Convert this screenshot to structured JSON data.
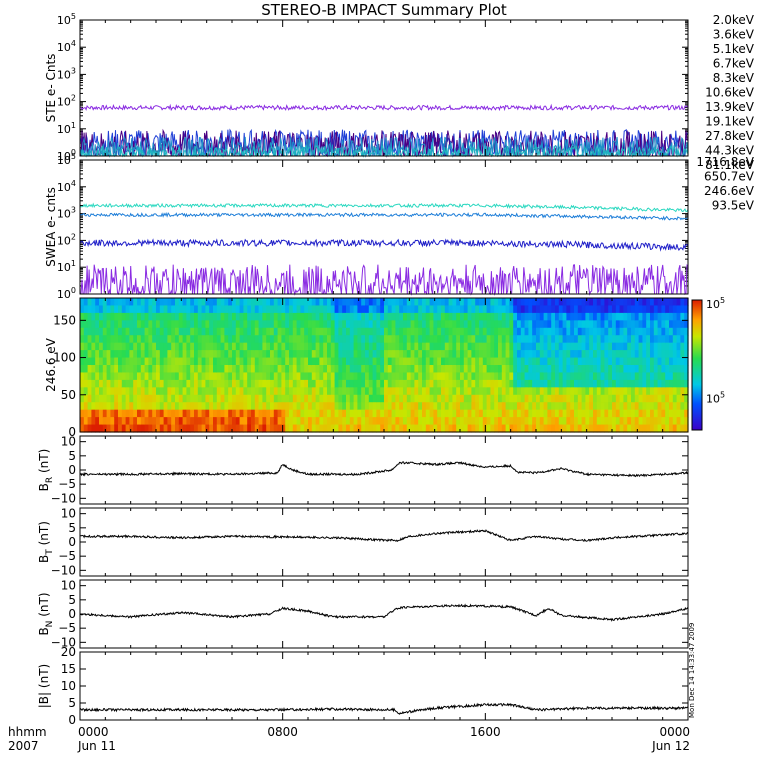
{
  "title": "STEREO-B IMPACT Summary Plot",
  "stamp": "Mon Dec 14 14:33:47 2009",
  "chart_data": [
    {
      "type": "line",
      "id": "ste",
      "ylabel": "STE e- Cnts",
      "yscale": "log",
      "ylim": [
        1,
        100000
      ],
      "ytick_labels": [
        {
          "base": "10",
          "exp": "0"
        },
        {
          "base": "10",
          "exp": "1"
        },
        {
          "base": "10",
          "exp": "2"
        },
        {
          "base": "10",
          "exp": "3"
        },
        {
          "base": "10",
          "exp": "4"
        },
        {
          "base": "10",
          "exp": "5"
        }
      ],
      "legend": [
        {
          "label": "2.0keV",
          "color": "#8a2be2"
        },
        {
          "label": "3.6keV",
          "color": "#4b0082"
        },
        {
          "label": "5.1keV",
          "color": "#1f3fd6"
        },
        {
          "label": "6.7keV",
          "color": "#1e90c8"
        },
        {
          "label": "8.3keV",
          "color": "#1fb5c0"
        },
        {
          "label": "10.6keV",
          "color": "#18c890"
        },
        {
          "label": "13.9keV",
          "color": "#10b030"
        },
        {
          "label": "19.1keV",
          "color": "#a8c010"
        },
        {
          "label": "27.8keV",
          "color": "#e0b000"
        },
        {
          "label": "44.3keV",
          "color": "#e07000"
        },
        {
          "label": "81.1keV",
          "color": "#d02000"
        }
      ],
      "series": [
        {
          "color": "#8a2be2",
          "level": 60,
          "noise": 0.04
        },
        {
          "color": "#1f3fd6",
          "level": 3,
          "noise": 0.25
        },
        {
          "color": "#4b0082",
          "level": 2.2,
          "noise": 0.3
        },
        {
          "color": "#1e90c8",
          "level": 1.6,
          "noise": 0.25
        },
        {
          "color": "#1fb5c0",
          "level": 1.2,
          "noise": 0.15
        }
      ]
    },
    {
      "type": "line",
      "id": "swea",
      "ylabel": "SWEA e- cnts",
      "yscale": "log",
      "ylim": [
        1,
        100000
      ],
      "ytick_labels": [
        {
          "base": "10",
          "exp": "0"
        },
        {
          "base": "10",
          "exp": "1"
        },
        {
          "base": "10",
          "exp": "2"
        },
        {
          "base": "10",
          "exp": "3"
        },
        {
          "base": "10",
          "exp": "4"
        },
        {
          "base": "10",
          "exp": "5"
        }
      ],
      "legend": [
        {
          "label": "1716.8eV",
          "color": "#8a2be2"
        },
        {
          "label": "650.7eV",
          "color": "#1f1fc8"
        },
        {
          "label": "246.6eV",
          "color": "#1e7ed8"
        },
        {
          "label": "93.5eV",
          "color": "#18c8c8"
        }
      ],
      "series": [
        {
          "color": "#2ad8c0",
          "level": 2000,
          "end": 1300,
          "noise": 0.03
        },
        {
          "color": "#1e7ed8",
          "level": 900,
          "end": 650,
          "noise": 0.03
        },
        {
          "color": "#1f1fc8",
          "level": 80,
          "end": 55,
          "noise": 0.06
        },
        {
          "color": "#8a2be2",
          "level": 2.5,
          "end": 2.5,
          "noise": 0.35
        }
      ]
    },
    {
      "type": "heatmap",
      "id": "pad",
      "ylabel": "246.6 eV",
      "ylim": [
        0,
        180
      ],
      "yticks": [
        0,
        50,
        100,
        150
      ],
      "colorbar": {
        "top": {
          "base": "10",
          "exp": "5"
        },
        "bottom": {
          "base": "10",
          "exp": "5"
        }
      }
    },
    {
      "type": "line",
      "id": "br",
      "ylabel": {
        "base": "B",
        "sub": "R",
        "unit": "(nT)"
      },
      "ylim": [
        -12,
        12
      ],
      "yticks": [
        10,
        5,
        0,
        -5,
        -10
      ],
      "x": [
        0,
        2,
        4,
        6,
        7.8,
        8,
        8.4,
        9,
        11,
        12.3,
        12.6,
        13,
        14,
        15,
        16,
        17,
        17.3,
        18,
        19,
        20,
        22,
        24
      ],
      "y": [
        -1.5,
        -1.5,
        -1.3,
        -1.5,
        -1,
        2,
        0,
        -1.5,
        -1.5,
        0,
        2.5,
        2.5,
        2,
        2.5,
        1,
        1.5,
        -0.8,
        -1,
        0.5,
        -1.5,
        -2,
        -1
      ]
    },
    {
      "type": "line",
      "id": "bt",
      "ylabel": {
        "base": "B",
        "sub": "T",
        "unit": "(nT)"
      },
      "ylim": [
        -12,
        12
      ],
      "yticks": [
        10,
        5,
        0,
        -5,
        -10
      ],
      "x": [
        0,
        2,
        4,
        6,
        8,
        10,
        12.5,
        13,
        14,
        16,
        17,
        18,
        19,
        20,
        21,
        24
      ],
      "y": [
        2,
        2,
        1.5,
        2,
        1.8,
        1.5,
        0.5,
        2,
        3,
        4,
        0.5,
        2,
        1,
        0.5,
        1.5,
        3
      ]
    },
    {
      "type": "line",
      "id": "bn",
      "ylabel": {
        "base": "B",
        "sub": "N",
        "unit": "(nT)"
      },
      "ylim": [
        -12,
        12
      ],
      "yticks": [
        10,
        5,
        0,
        -5,
        -10
      ],
      "x": [
        0,
        2,
        4,
        6,
        7.5,
        8,
        9,
        10,
        12,
        12.5,
        13,
        15,
        17,
        18,
        18.5,
        19,
        21,
        23,
        24
      ],
      "y": [
        0,
        -1,
        0.5,
        -1,
        0,
        2,
        1,
        -1,
        -1,
        2,
        2.5,
        3,
        2.5,
        -0.5,
        2,
        -0.5,
        -2,
        0,
        2
      ]
    },
    {
      "type": "line",
      "id": "bmag",
      "ylabel": {
        "base": "|B|",
        "sub": "",
        "unit": "(nT)"
      },
      "ylim": [
        0,
        20
      ],
      "yticks": [
        20,
        15,
        10,
        5,
        0
      ],
      "x": [
        0,
        4,
        8,
        10,
        12.4,
        12.6,
        14,
        16,
        17,
        18,
        20,
        22,
        24
      ],
      "y": [
        3,
        3,
        3,
        3.2,
        3,
        2,
        3.5,
        4.5,
        4.5,
        3,
        3.5,
        3.5,
        3.5
      ]
    }
  ],
  "xaxis": {
    "row1_label": "hhmm",
    "row2_label": "2007",
    "ticks": [
      {
        "hour": 0,
        "label": "0000",
        "sub": "Jun 11"
      },
      {
        "hour": 8,
        "label": "0800",
        "sub": ""
      },
      {
        "hour": 16,
        "label": "1600",
        "sub": ""
      },
      {
        "hour": 24,
        "label": "0000",
        "sub": "Jun 12"
      }
    ]
  }
}
